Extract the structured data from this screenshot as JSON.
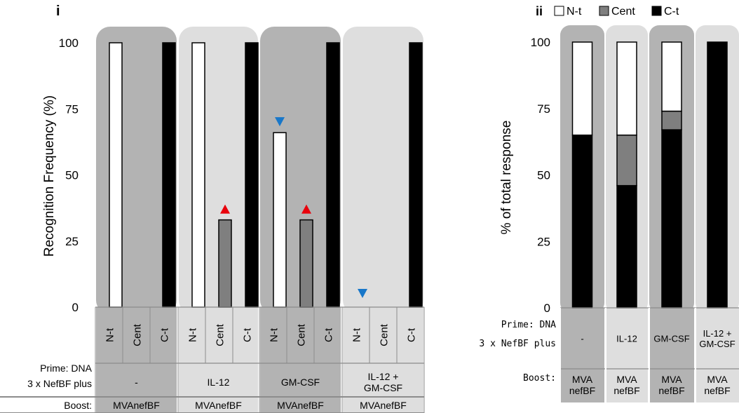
{
  "panel_labels": {
    "left": "i",
    "right": "ii"
  },
  "colors": {
    "dark_band": "#b3b3b3",
    "light_band": "#dedede",
    "n_t": "#ffffff",
    "cent": "#7f7f7f",
    "c_t": "#000000",
    "arrow_up": "#e8000b",
    "arrow_down": "#1877c9",
    "table_line": "#8c8c8c"
  },
  "row_labels": {
    "prime": "Prime: DNA",
    "nefbf": "3 x NefBF  plus",
    "boost": "Boost:"
  },
  "chart_data": [
    {
      "id": "i",
      "type": "bar",
      "ylabel": "Recognition Frequency (%)",
      "ylim": [
        0,
        100
      ],
      "yticks": [
        "0",
        "25",
        "50",
        "75",
        "100"
      ],
      "grid": false,
      "groups": [
        {
          "prime": "-",
          "boost": "MVAnefBF",
          "band": "dark",
          "bars": [
            {
              "label": "N-t",
              "value": 100,
              "color": "#ffffff"
            },
            {
              "label": "Cent",
              "value": 0,
              "color": "#7f7f7f"
            },
            {
              "label": "C-t",
              "value": 100,
              "color": "#000000"
            }
          ]
        },
        {
          "prime": "IL-12",
          "boost": "MVAnefBF",
          "band": "light",
          "bars": [
            {
              "label": "N-t",
              "value": 100,
              "color": "#ffffff"
            },
            {
              "label": "Cent",
              "value": 33,
              "color": "#7f7f7f",
              "marker": "up"
            },
            {
              "label": "C-t",
              "value": 100,
              "color": "#000000"
            }
          ]
        },
        {
          "prime": "GM-CSF",
          "boost": "MVAnefBF",
          "band": "dark",
          "bars": [
            {
              "label": "N-t",
              "value": 66,
              "color": "#ffffff",
              "marker": "down"
            },
            {
              "label": "Cent",
              "value": 33,
              "color": "#7f7f7f",
              "marker": "up"
            },
            {
              "label": "C-t",
              "value": 100,
              "color": "#000000"
            }
          ]
        },
        {
          "prime": [
            "IL-12 +",
            "GM-CSF"
          ],
          "boost": "MVAnefBF",
          "band": "light",
          "bars": [
            {
              "label": "N-t",
              "value": 0,
              "color": "#ffffff",
              "marker": "down"
            },
            {
              "label": "Cent",
              "value": 0,
              "color": "#7f7f7f"
            },
            {
              "label": "C-t",
              "value": 100,
              "color": "#000000"
            }
          ]
        }
      ]
    },
    {
      "id": "ii",
      "type": "bar",
      "stacked": true,
      "ylabel": "% of total response",
      "ylim": [
        0,
        100
      ],
      "yticks": [
        "0",
        "25",
        "50",
        "75",
        "100"
      ],
      "grid": false,
      "legend_position": "top-right",
      "series": [
        {
          "name": "C-t",
          "color": "#000000",
          "values": [
            65,
            46,
            67,
            100
          ]
        },
        {
          "name": "Cent",
          "color": "#7f7f7f",
          "values": [
            0,
            19,
            7,
            0
          ]
        },
        {
          "name": "N-t",
          "color": "#ffffff",
          "values": [
            35,
            35,
            26,
            0
          ]
        }
      ],
      "legend": [
        "N-t",
        "Cent",
        "C-t"
      ],
      "categories": [
        {
          "prime": "-",
          "boost": [
            "MVA",
            "nefBF"
          ],
          "band": "dark"
        },
        {
          "prime": "IL-12",
          "boost": [
            "MVA",
            "nefBF"
          ],
          "band": "light"
        },
        {
          "prime": "GM-CSF",
          "boost": [
            "MVA",
            "nefBF"
          ],
          "band": "dark"
        },
        {
          "prime": [
            "IL-12 +",
            "GM-CSF"
          ],
          "boost": [
            "MVA",
            "nefBF"
          ],
          "band": "light"
        }
      ]
    }
  ]
}
